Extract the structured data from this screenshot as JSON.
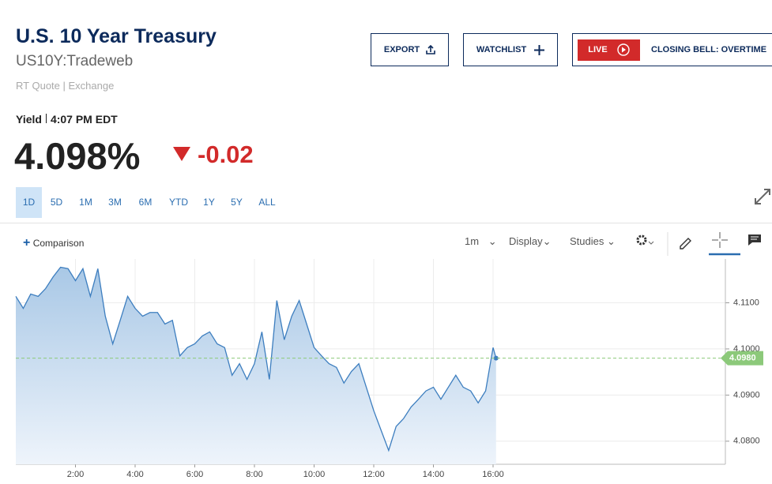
{
  "header": {
    "title": "U.S. 10 Year Treasury",
    "symbol": "US10Y:Tradeweb",
    "quote_source": "RT Quote | Exchange"
  },
  "buttons": {
    "export": "EXPORT",
    "watchlist": "WATCHLIST",
    "live": "LIVE",
    "live_show": "CLOSING BELL: OVERTIME"
  },
  "quote": {
    "label": "Yield",
    "time": "4:07 PM EDT",
    "value": "4.098%",
    "change": "-0.02"
  },
  "range_tabs": [
    "1D",
    "5D",
    "1M",
    "3M",
    "6M",
    "YTD",
    "1Y",
    "5Y",
    "ALL"
  ],
  "toolbar": {
    "comparison": "Comparison",
    "interval": "1m",
    "display": "Display",
    "studies": "Studies"
  },
  "chart_data": {
    "type": "area",
    "x": [
      0,
      0.25,
      0.5,
      0.75,
      1,
      1.25,
      1.5,
      1.75,
      2,
      2.25,
      2.5,
      2.75,
      3,
      3.25,
      3.5,
      3.75,
      4,
      4.25,
      4.5,
      4.75,
      5,
      5.25,
      5.5,
      5.75,
      6,
      6.25,
      6.5,
      6.75,
      7,
      7.25,
      7.5,
      7.75,
      8,
      8.25,
      8.5,
      8.75,
      9,
      9.25,
      9.5,
      9.75,
      10,
      10.25,
      10.5,
      10.75,
      11,
      11.25,
      11.5,
      11.75,
      12,
      12.25,
      12.5,
      12.75,
      13,
      13.25,
      13.5,
      13.75,
      14,
      14.25,
      14.5,
      14.75,
      15,
      15.25,
      15.5,
      15.75,
      16,
      16.1
    ],
    "series": [
      {
        "color": "#3d7ebf",
        "values": [
          4.1114,
          4.1088,
          4.1119,
          4.1114,
          4.1131,
          4.1156,
          4.1177,
          4.1174,
          4.1148,
          4.1174,
          4.1114,
          4.1174,
          4.1071,
          4.1011,
          4.1062,
          4.1114,
          4.1088,
          4.1071,
          4.1079,
          4.1079,
          4.1054,
          4.1062,
          4.0985,
          4.1003,
          4.1011,
          4.1028,
          4.1037,
          4.1011,
          4.1003,
          4.0943,
          4.0968,
          4.0934,
          4.0968,
          4.1037,
          4.0934,
          4.1105,
          4.102,
          4.1071,
          4.1105,
          4.1054,
          4.1003,
          4.0985,
          4.0968,
          4.096,
          4.0926,
          4.0951,
          4.0968,
          4.0917,
          4.0866,
          4.0823,
          4.078,
          4.0832,
          4.0849,
          4.0874,
          4.0891,
          4.0909,
          4.0917,
          4.0891,
          4.0917,
          4.0943,
          4.0917,
          4.0909,
          4.0883,
          4.0909,
          4.1003,
          4.098
        ]
      }
    ],
    "xlim": [
      0,
      24
    ],
    "xticks": [
      {
        "value": 2,
        "label": "2:00"
      },
      {
        "value": 4,
        "label": "4:00"
      },
      {
        "value": 6,
        "label": "6:00"
      },
      {
        "value": 8,
        "label": "8:00"
      },
      {
        "value": 10,
        "label": "10:00"
      },
      {
        "value": 12,
        "label": "12:00"
      },
      {
        "value": 14,
        "label": "14:00"
      },
      {
        "value": 16,
        "label": "16:00"
      }
    ],
    "ylim": [
      4.075,
      4.1195
    ],
    "yticks": [
      {
        "value": 4.08,
        "label": "4.0800"
      },
      {
        "value": 4.09,
        "label": "4.0900"
      },
      {
        "value": 4.1,
        "label": "4.1000"
      },
      {
        "value": 4.11,
        "label": "4.1100"
      }
    ],
    "last_value": {
      "value": 4.098,
      "label": "4.0980",
      "color": "#8cc97a"
    },
    "grid": true
  }
}
